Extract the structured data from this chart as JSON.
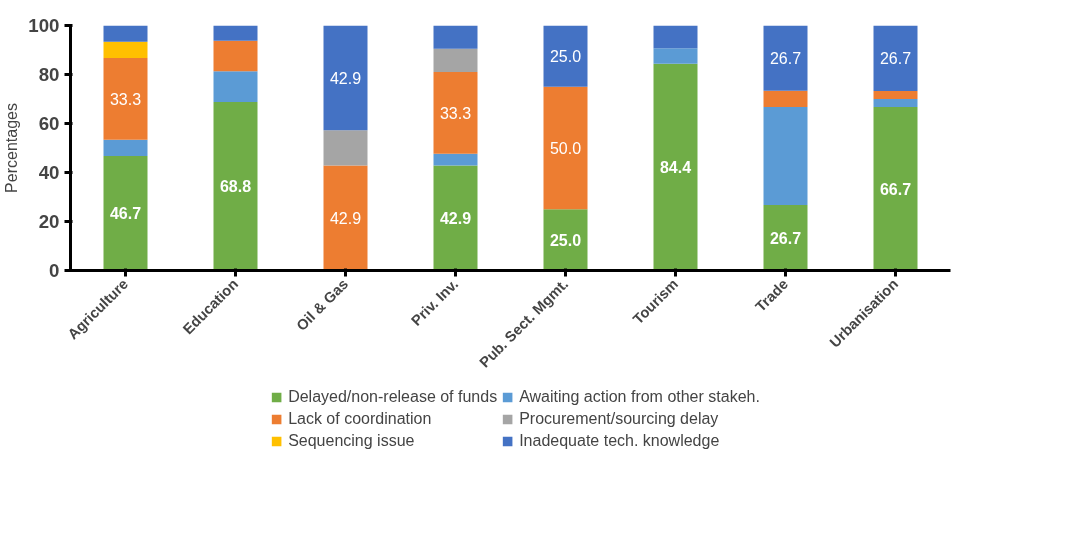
{
  "chart_data": {
    "type": "bar",
    "stacked": true,
    "ylabel": "Percentages",
    "categories": [
      "Agriculture",
      "Education",
      "Oil & Gas",
      "Priv. Inv.",
      "Pub. Sect. Mgmt.",
      "Tourism",
      "Trade",
      "Urbanisation"
    ],
    "ylim": [
      0,
      100
    ],
    "yticks": [
      0,
      20,
      40,
      60,
      80,
      100
    ],
    "grid": false,
    "legend": "bottom",
    "series": [
      {
        "name": "Delayed/non-release of funds",
        "color": "#70ad47",
        "values": [
          46.7,
          68.8,
          0,
          42.9,
          25.0,
          84.4,
          26.7,
          66.7
        ],
        "value_labels": [
          "46.7",
          "68.8",
          null,
          "42.9",
          "25.0",
          "84.4",
          "26.7",
          "66.7"
        ]
      },
      {
        "name": "Awaiting action from other stakeh.",
        "color": "#5b9bd5",
        "values": [
          6.7,
          12.5,
          0,
          4.8,
          0,
          6.3,
          40.0,
          3.3
        ]
      },
      {
        "name": "Lack of coordination",
        "color": "#ed7d31",
        "values": [
          33.3,
          12.5,
          42.9,
          33.3,
          50.0,
          0,
          6.7,
          3.3
        ],
        "value_labels": [
          "33.3",
          null,
          "42.9",
          "33.3",
          "50.0",
          null,
          null,
          null
        ]
      },
      {
        "name": "Procurement/sourcing delay",
        "color": "#a5a5a5",
        "values": [
          0,
          0,
          14.3,
          9.5,
          0,
          0,
          0,
          0
        ]
      },
      {
        "name": "Sequencing issue",
        "color": "#ffc000",
        "values": [
          6.7,
          0,
          0,
          0,
          0,
          0,
          0,
          0
        ]
      },
      {
        "name": "Inadequate tech. knowledge",
        "color": "#4472c4",
        "values": [
          6.7,
          6.3,
          42.9,
          9.5,
          25.0,
          9.4,
          26.7,
          26.7
        ],
        "value_labels": [
          null,
          null,
          "42.9",
          null,
          "25.0",
          null,
          "26.7",
          "26.7"
        ]
      }
    ]
  }
}
